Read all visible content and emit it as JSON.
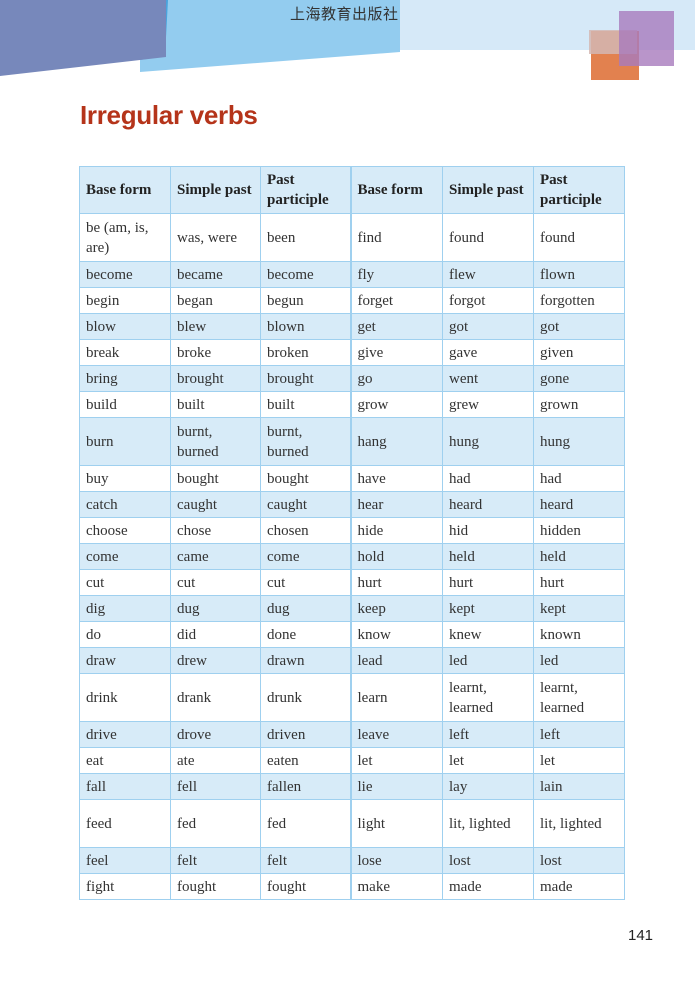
{
  "header": {
    "publisher": "上海教育出版社"
  },
  "title": "Irregular verbs",
  "columns": [
    "Base form",
    "Simple past",
    "Past participle",
    "Base form",
    "Simple past",
    "Past participle"
  ],
  "rows": [
    [
      "be (am, is, are)",
      "was, were",
      "been",
      "find",
      "found",
      "found"
    ],
    [
      "become",
      "became",
      "become",
      "fly",
      "flew",
      "flown"
    ],
    [
      "begin",
      "began",
      "begun",
      "forget",
      "forgot",
      "forgotten"
    ],
    [
      "blow",
      "blew",
      "blown",
      "get",
      "got",
      "got"
    ],
    [
      "break",
      "broke",
      "broken",
      "give",
      "gave",
      "given"
    ],
    [
      "bring",
      "brought",
      "brought",
      "go",
      "went",
      "gone"
    ],
    [
      "build",
      "built",
      "built",
      "grow",
      "grew",
      "grown"
    ],
    [
      "burn",
      "burnt, burned",
      "burnt, burned",
      "hang",
      "hung",
      "hung"
    ],
    [
      "buy",
      "bought",
      "bought",
      "have",
      "had",
      "had"
    ],
    [
      "catch",
      "caught",
      "caught",
      "hear",
      "heard",
      "heard"
    ],
    [
      "choose",
      "chose",
      "chosen",
      "hide",
      "hid",
      "hidden"
    ],
    [
      "come",
      "came",
      "come",
      "hold",
      "held",
      "held"
    ],
    [
      "cut",
      "cut",
      "cut",
      "hurt",
      "hurt",
      "hurt"
    ],
    [
      "dig",
      "dug",
      "dug",
      "keep",
      "kept",
      "kept"
    ],
    [
      "do",
      "did",
      "done",
      "know",
      "knew",
      "known"
    ],
    [
      "draw",
      "drew",
      "drawn",
      "lead",
      "led",
      "led"
    ],
    [
      "drink",
      "drank",
      "drunk",
      "learn",
      "learnt, learned",
      "learnt, learned"
    ],
    [
      "drive",
      "drove",
      "driven",
      "leave",
      "left",
      "left"
    ],
    [
      "eat",
      "ate",
      "eaten",
      "let",
      "let",
      "let"
    ],
    [
      "fall",
      "fell",
      "fallen",
      "lie",
      "lay",
      "lain"
    ],
    [
      "feed",
      "fed",
      "fed",
      "light",
      "lit, lighted",
      "lit, lighted"
    ],
    [
      "feel",
      "felt",
      "felt",
      "lose",
      "lost",
      "lost"
    ],
    [
      "fight",
      "fought",
      "fought",
      "make",
      "made",
      "made"
    ]
  ],
  "page_number": "141",
  "colors": {
    "title": "#b5341a",
    "table_border": "#9fd0ef",
    "row_shade": "#d7ebf8"
  }
}
